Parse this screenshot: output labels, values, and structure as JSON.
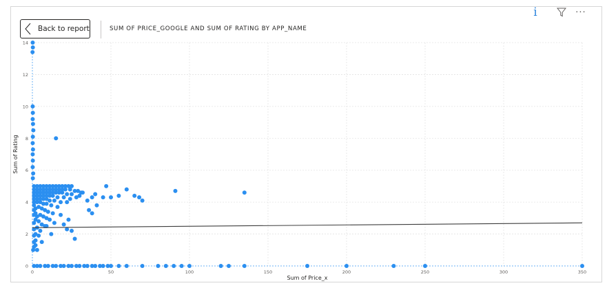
{
  "header": {
    "back_label": "Back to report",
    "title": "SUM OF PRICE_GOOGLE AND SUM OF RATING BY APP_NAME"
  },
  "toolbar": {
    "info_icon": "info-icon",
    "filter_icon": "filter-icon",
    "more_icon": "more-options-icon"
  },
  "colors": {
    "points": "#2b8ff0",
    "trend": "#3c3c3c",
    "grid": "#e3e3e3"
  },
  "chart_data": {
    "type": "scatter",
    "title": "SUM OF PRICE_GOOGLE AND SUM OF RATING BY APP_NAME",
    "xlabel": "Sum of Price_x",
    "ylabel": "Sum of Rating",
    "xlim": [
      0,
      350
    ],
    "ylim": [
      0,
      14
    ],
    "xticks": [
      "0",
      "50",
      "100",
      "150",
      "200",
      "250",
      "300",
      "350"
    ],
    "yticks": [
      "0",
      "2",
      "4",
      "6",
      "8",
      "10",
      "12",
      "14"
    ],
    "grid": true,
    "trendline": {
      "x": [
        0,
        350
      ],
      "y": [
        2.4,
        2.7
      ]
    },
    "points": [
      {
        "x": 0.2,
        "y": 14
      },
      {
        "x": 0.3,
        "y": 13.7
      },
      {
        "x": 0.1,
        "y": 13.4
      },
      {
        "x": 0.2,
        "y": 10
      },
      {
        "x": 0.3,
        "y": 9.6
      },
      {
        "x": 0.2,
        "y": 9.2
      },
      {
        "x": 0.4,
        "y": 8.9
      },
      {
        "x": 0.6,
        "y": 8.5
      },
      {
        "x": 0.3,
        "y": 8.1
      },
      {
        "x": 0.2,
        "y": 7.7
      },
      {
        "x": 0.4,
        "y": 7.3
      },
      {
        "x": 0.2,
        "y": 7
      },
      {
        "x": 0.3,
        "y": 6.6
      },
      {
        "x": 0.2,
        "y": 6.2
      },
      {
        "x": 0.5,
        "y": 5.8
      },
      {
        "x": 0.3,
        "y": 5.5
      },
      {
        "x": 15,
        "y": 8
      },
      {
        "x": 1,
        "y": 5
      },
      {
        "x": 3,
        "y": 5
      },
      {
        "x": 5,
        "y": 5
      },
      {
        "x": 7,
        "y": 5
      },
      {
        "x": 9,
        "y": 5
      },
      {
        "x": 11,
        "y": 5
      },
      {
        "x": 13,
        "y": 5
      },
      {
        "x": 15,
        "y": 5
      },
      {
        "x": 17,
        "y": 5
      },
      {
        "x": 19,
        "y": 5
      },
      {
        "x": 21,
        "y": 5
      },
      {
        "x": 23,
        "y": 5
      },
      {
        "x": 25,
        "y": 5
      },
      {
        "x": 1,
        "y": 4.8
      },
      {
        "x": 3,
        "y": 4.8
      },
      {
        "x": 5,
        "y": 4.8
      },
      {
        "x": 7,
        "y": 4.8
      },
      {
        "x": 9,
        "y": 4.8
      },
      {
        "x": 11,
        "y": 4.8
      },
      {
        "x": 13,
        "y": 4.8
      },
      {
        "x": 15,
        "y": 4.8
      },
      {
        "x": 17,
        "y": 4.8
      },
      {
        "x": 19,
        "y": 4.8
      },
      {
        "x": 21,
        "y": 4.8
      },
      {
        "x": 24,
        "y": 4.8
      },
      {
        "x": 27,
        "y": 4.7
      },
      {
        "x": 29,
        "y": 4.7
      },
      {
        "x": 1,
        "y": 4.6
      },
      {
        "x": 3,
        "y": 4.6
      },
      {
        "x": 5,
        "y": 4.6
      },
      {
        "x": 7,
        "y": 4.6
      },
      {
        "x": 9,
        "y": 4.6
      },
      {
        "x": 11,
        "y": 4.6
      },
      {
        "x": 13,
        "y": 4.6
      },
      {
        "x": 15,
        "y": 4.6
      },
      {
        "x": 17,
        "y": 4.6
      },
      {
        "x": 19,
        "y": 4.6
      },
      {
        "x": 22,
        "y": 4.5
      },
      {
        "x": 25,
        "y": 4.5
      },
      {
        "x": 31,
        "y": 4.6
      },
      {
        "x": 1,
        "y": 4.4
      },
      {
        "x": 3,
        "y": 4.4
      },
      {
        "x": 5,
        "y": 4.4
      },
      {
        "x": 7,
        "y": 4.4
      },
      {
        "x": 9,
        "y": 4.4
      },
      {
        "x": 11,
        "y": 4.4
      },
      {
        "x": 13,
        "y": 4.4
      },
      {
        "x": 16,
        "y": 4.3
      },
      {
        "x": 20,
        "y": 4.3
      },
      {
        "x": 24,
        "y": 4.2
      },
      {
        "x": 28,
        "y": 4.3
      },
      {
        "x": 1,
        "y": 4.2
      },
      {
        "x": 3,
        "y": 4.2
      },
      {
        "x": 5,
        "y": 4.2
      },
      {
        "x": 7,
        "y": 4.2
      },
      {
        "x": 9,
        "y": 4.2
      },
      {
        "x": 11,
        "y": 4.1
      },
      {
        "x": 14,
        "y": 4.1
      },
      {
        "x": 18,
        "y": 4
      },
      {
        "x": 22,
        "y": 4
      },
      {
        "x": 1,
        "y": 4
      },
      {
        "x": 3,
        "y": 4
      },
      {
        "x": 5,
        "y": 4
      },
      {
        "x": 7,
        "y": 3.9
      },
      {
        "x": 9,
        "y": 3.9
      },
      {
        "x": 12,
        "y": 3.8
      },
      {
        "x": 16,
        "y": 3.7
      },
      {
        "x": 1,
        "y": 3.8
      },
      {
        "x": 2,
        "y": 3.6
      },
      {
        "x": 4,
        "y": 3.7
      },
      {
        "x": 6,
        "y": 3.6
      },
      {
        "x": 8,
        "y": 3.5
      },
      {
        "x": 10,
        "y": 3.4
      },
      {
        "x": 13,
        "y": 3.3
      },
      {
        "x": 18,
        "y": 3.2
      },
      {
        "x": 1,
        "y": 3.5
      },
      {
        "x": 2,
        "y": 3.3
      },
      {
        "x": 3,
        "y": 3.1
      },
      {
        "x": 5,
        "y": 3.2
      },
      {
        "x": 7,
        "y": 3.1
      },
      {
        "x": 9,
        "y": 3
      },
      {
        "x": 11,
        "y": 2.9
      },
      {
        "x": 14,
        "y": 2.7
      },
      {
        "x": 1,
        "y": 3.2
      },
      {
        "x": 2,
        "y": 2.9
      },
      {
        "x": 4,
        "y": 2.8
      },
      {
        "x": 6,
        "y": 2.6
      },
      {
        "x": 8,
        "y": 2.5
      },
      {
        "x": 1,
        "y": 2.7
      },
      {
        "x": 3,
        "y": 2.4
      },
      {
        "x": 5,
        "y": 2.2
      },
      {
        "x": 1,
        "y": 2.3
      },
      {
        "x": 2,
        "y": 2.0
      },
      {
        "x": 4,
        "y": 1.9
      },
      {
        "x": 1,
        "y": 1.9
      },
      {
        "x": 2,
        "y": 1.6
      },
      {
        "x": 1,
        "y": 1.5
      },
      {
        "x": 2,
        "y": 1.3
      },
      {
        "x": 1,
        "y": 1.2
      },
      {
        "x": 0.5,
        "y": 1.0
      },
      {
        "x": 9,
        "y": 2.5
      },
      {
        "x": 22,
        "y": 2.3
      },
      {
        "x": 25,
        "y": 2.2
      },
      {
        "x": 20,
        "y": 2.6
      },
      {
        "x": 23,
        "y": 2.9
      },
      {
        "x": 27,
        "y": 1.7
      },
      {
        "x": 12,
        "y": 2.0
      },
      {
        "x": 6,
        "y": 1.5
      },
      {
        "x": 3,
        "y": 1.0
      },
      {
        "x": 30,
        "y": 4.4
      },
      {
        "x": 32,
        "y": 4.6
      },
      {
        "x": 35,
        "y": 4.1
      },
      {
        "x": 38,
        "y": 4.3
      },
      {
        "x": 40,
        "y": 4.5
      },
      {
        "x": 41,
        "y": 3.8
      },
      {
        "x": 36,
        "y": 3.5
      },
      {
        "x": 38,
        "y": 3.3
      },
      {
        "x": 45,
        "y": 4.3
      },
      {
        "x": 47,
        "y": 5.0
      },
      {
        "x": 50,
        "y": 4.3
      },
      {
        "x": 55,
        "y": 4.4
      },
      {
        "x": 60,
        "y": 4.8
      },
      {
        "x": 65,
        "y": 4.4
      },
      {
        "x": 68,
        "y": 4.3
      },
      {
        "x": 70,
        "y": 4.1
      },
      {
        "x": 91,
        "y": 4.7
      },
      {
        "x": 135,
        "y": 4.6
      },
      {
        "x": 1,
        "y": 0
      },
      {
        "x": 3,
        "y": 0
      },
      {
        "x": 5,
        "y": 0
      },
      {
        "x": 8,
        "y": 0
      },
      {
        "x": 10,
        "y": 0
      },
      {
        "x": 13,
        "y": 0
      },
      {
        "x": 15,
        "y": 0
      },
      {
        "x": 18,
        "y": 0
      },
      {
        "x": 20,
        "y": 0
      },
      {
        "x": 23,
        "y": 0
      },
      {
        "x": 25,
        "y": 0
      },
      {
        "x": 28,
        "y": 0
      },
      {
        "x": 30,
        "y": 0
      },
      {
        "x": 33,
        "y": 0
      },
      {
        "x": 35,
        "y": 0
      },
      {
        "x": 38,
        "y": 0
      },
      {
        "x": 40,
        "y": 0
      },
      {
        "x": 43,
        "y": 0
      },
      {
        "x": 45,
        "y": 0
      },
      {
        "x": 48,
        "y": 0
      },
      {
        "x": 50,
        "y": 0
      },
      {
        "x": 55,
        "y": 0
      },
      {
        "x": 60,
        "y": 0
      },
      {
        "x": 70,
        "y": 0
      },
      {
        "x": 80,
        "y": 0
      },
      {
        "x": 85,
        "y": 0
      },
      {
        "x": 90,
        "y": 0
      },
      {
        "x": 95,
        "y": 0
      },
      {
        "x": 100,
        "y": 0
      },
      {
        "x": 120,
        "y": 0
      },
      {
        "x": 125,
        "y": 0
      },
      {
        "x": 135,
        "y": 0
      },
      {
        "x": 175,
        "y": 0
      },
      {
        "x": 200,
        "y": 0
      },
      {
        "x": 230,
        "y": 0
      },
      {
        "x": 250,
        "y": 0
      },
      {
        "x": 350,
        "y": 0
      }
    ]
  }
}
